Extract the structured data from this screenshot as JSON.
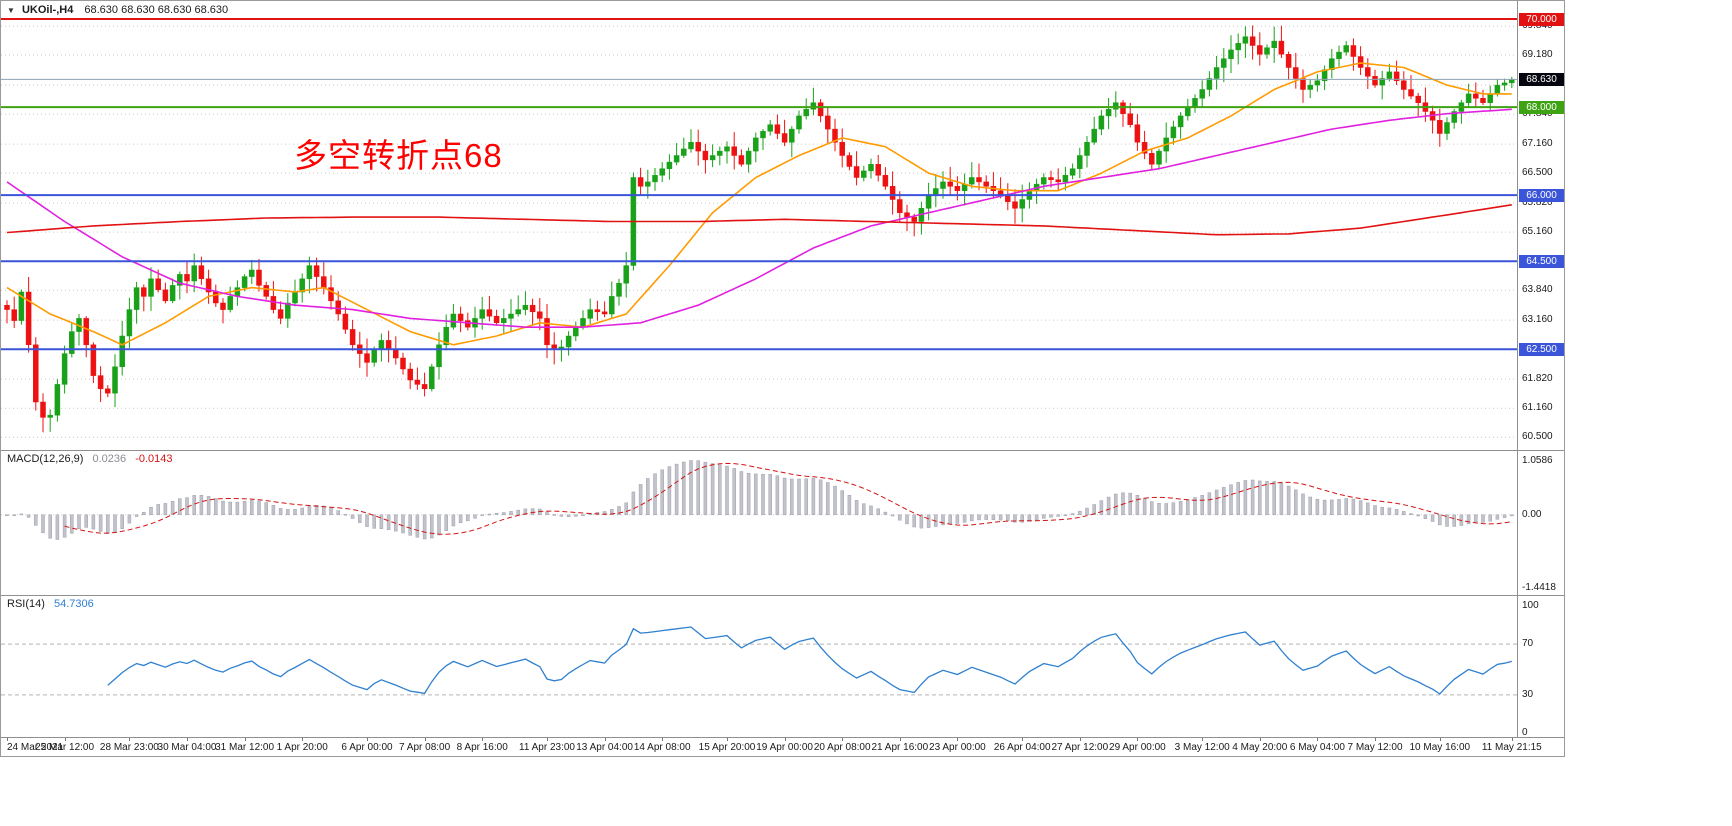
{
  "header": {
    "collapse_icon": "▼",
    "symbol": "UKOil-,H4",
    "ohlc": "68.630 68.630 68.630 68.630"
  },
  "annotation": {
    "text": "多空转折点68",
    "color": "#ff0000"
  },
  "colors": {
    "up": "#19a119",
    "down": "#ee1111",
    "grid": "#c9c9c9",
    "background": "#ffffff",
    "line_red": "#e31212",
    "line_green": "#3ea313",
    "line_blue": "#3a55d9",
    "current_price_bg": "#05050f"
  },
  "time_axis": {
    "labels": [
      "24 Mar 2021",
      "25 Mar 12:00",
      "28 Mar 23:00",
      "30 Mar 04:00",
      "31 Mar 12:00",
      "1 Apr 20:00",
      "6 Apr 00:00",
      "7 Apr 08:00",
      "8 Apr 16:00",
      "11 Apr 23:00",
      "13 Apr 04:00",
      "14 Apr 08:00",
      "15 Apr 20:00",
      "19 Apr 00:00",
      "20 Apr 08:00",
      "21 Apr 16:00",
      "23 Apr 00:00",
      "26 Apr 04:00",
      "27 Apr 12:00",
      "29 Apr 00:00",
      "3 May 12:00",
      "4 May 20:00",
      "6 May 04:00",
      "7 May 12:00",
      "10 May 16:00",
      "11 May 21:15"
    ],
    "bars": [
      0,
      8,
      17,
      25,
      33,
      41,
      50,
      58,
      66,
      75,
      83,
      91,
      100,
      108,
      116,
      124,
      132,
      141,
      149,
      157,
      166,
      174,
      182,
      190,
      199,
      209
    ]
  },
  "chart_data": [
    {
      "type": "candlestick",
      "symbol": "UKOil-",
      "timeframe": "H4",
      "ylim": [
        60.21,
        70.41
      ],
      "y_ticks": [
        "69.840",
        "69.180",
        "68.500",
        "67.840",
        "67.160",
        "66.500",
        "65.820",
        "65.160",
        "64.500",
        "63.840",
        "63.160",
        "62.500",
        "61.820",
        "61.160",
        "60.500"
      ],
      "first_open": 63.5,
      "closes": [
        63.4,
        63.15,
        63.8,
        62.6,
        61.3,
        60.95,
        61.0,
        61.7,
        62.4,
        62.9,
        63.2,
        62.6,
        61.9,
        61.6,
        61.5,
        62.1,
        62.8,
        63.4,
        63.9,
        63.7,
        64.1,
        63.85,
        63.6,
        63.95,
        64.2,
        64.05,
        64.4,
        64.1,
        63.8,
        63.55,
        63.4,
        63.7,
        63.9,
        64.15,
        64.3,
        63.95,
        63.7,
        63.4,
        63.2,
        63.55,
        63.8,
        64.1,
        64.4,
        64.15,
        63.9,
        63.6,
        63.3,
        62.95,
        62.6,
        62.4,
        62.2,
        62.5,
        62.7,
        62.5,
        62.3,
        62.05,
        61.8,
        61.7,
        61.6,
        62.1,
        62.6,
        63.0,
        63.3,
        63.15,
        63.0,
        63.2,
        63.4,
        63.25,
        63.1,
        63.2,
        63.3,
        63.4,
        63.5,
        63.35,
        63.2,
        62.6,
        62.5,
        62.55,
        62.8,
        63.0,
        63.2,
        63.4,
        63.35,
        63.3,
        63.7,
        64.0,
        64.4,
        66.4,
        66.2,
        66.3,
        66.45,
        66.6,
        66.75,
        66.9,
        67.05,
        67.2,
        67.0,
        66.8,
        66.9,
        67.0,
        67.1,
        66.9,
        66.7,
        67.0,
        67.3,
        67.45,
        67.6,
        67.4,
        67.2,
        67.5,
        67.8,
        67.95,
        68.1,
        67.8,
        67.5,
        67.2,
        66.9,
        66.65,
        66.4,
        66.55,
        66.7,
        66.45,
        66.2,
        65.9,
        65.6,
        65.5,
        65.4,
        65.7,
        66.0,
        66.15,
        66.3,
        66.2,
        66.1,
        66.25,
        66.4,
        66.3,
        66.2,
        66.1,
        66.0,
        65.85,
        65.7,
        65.9,
        66.1,
        66.25,
        66.4,
        66.35,
        66.3,
        66.45,
        66.6,
        66.9,
        67.2,
        67.5,
        67.8,
        67.95,
        68.1,
        67.85,
        67.6,
        67.2,
        66.95,
        66.7,
        67.0,
        67.3,
        67.55,
        67.8,
        68.0,
        68.2,
        68.4,
        68.65,
        68.9,
        69.1,
        69.3,
        69.45,
        69.6,
        69.4,
        69.2,
        69.35,
        69.5,
        69.2,
        68.9,
        68.65,
        68.4,
        68.5,
        68.6,
        68.85,
        69.1,
        69.25,
        69.4,
        69.15,
        68.9,
        68.7,
        68.5,
        68.65,
        68.8,
        68.6,
        68.4,
        68.25,
        68.1,
        67.9,
        67.7,
        67.4,
        67.65,
        67.9,
        68.1,
        68.3,
        68.2,
        68.1,
        68.3,
        68.5,
        68.55,
        68.63
      ],
      "hlines": [
        {
          "price": 70.0,
          "label": "70.000",
          "color": "#e31212",
          "name": "hline-70000"
        },
        {
          "price": 68.0,
          "label": "68.000",
          "color": "#3ea313",
          "name": "hline-68000"
        },
        {
          "price": 66.0,
          "label": "66.000",
          "color": "#3a55d9",
          "name": "hline-66000"
        },
        {
          "price": 64.5,
          "label": "64.500",
          "color": "#3a55d9",
          "name": "hline-64500"
        },
        {
          "price": 62.5,
          "label": "62.500",
          "color": "#3a55d9",
          "name": "hline-62500"
        }
      ],
      "current_price": {
        "price": 68.63,
        "label": "68.630",
        "bg": "#05050f",
        "line_color": "#8ba2b5"
      },
      "moving_averages": [
        {
          "name": "ma-fast-orange",
          "color": "#ff9b00",
          "anchors": [
            [
              0,
              63.9
            ],
            [
              6,
              63.3
            ],
            [
              12,
              62.9
            ],
            [
              16,
              62.6
            ],
            [
              22,
              63.1
            ],
            [
              28,
              63.7
            ],
            [
              34,
              63.9
            ],
            [
              40,
              63.8
            ],
            [
              44,
              63.9
            ],
            [
              50,
              63.4
            ],
            [
              56,
              62.9
            ],
            [
              62,
              62.6
            ],
            [
              68,
              62.8
            ],
            [
              74,
              63.1
            ],
            [
              80,
              63.0
            ],
            [
              86,
              63.3
            ],
            [
              92,
              64.4
            ],
            [
              98,
              65.6
            ],
            [
              104,
              66.4
            ],
            [
              110,
              66.9
            ],
            [
              116,
              67.3
            ],
            [
              122,
              67.1
            ],
            [
              128,
              66.5
            ],
            [
              134,
              66.2
            ],
            [
              140,
              66.1
            ],
            [
              146,
              66.1
            ],
            [
              152,
              66.5
            ],
            [
              158,
              67.0
            ],
            [
              164,
              67.3
            ],
            [
              170,
              67.8
            ],
            [
              176,
              68.4
            ],
            [
              182,
              68.8
            ],
            [
              188,
              69.0
            ],
            [
              194,
              68.9
            ],
            [
              200,
              68.5
            ],
            [
              205,
              68.3
            ],
            [
              209,
              68.3
            ]
          ]
        },
        {
          "name": "ma-mid-magenta",
          "color": "#e021e0",
          "anchors": [
            [
              0,
              66.3
            ],
            [
              8,
              65.4
            ],
            [
              16,
              64.6
            ],
            [
              24,
              64.0
            ],
            [
              32,
              63.7
            ],
            [
              40,
              63.5
            ],
            [
              48,
              63.4
            ],
            [
              56,
              63.2
            ],
            [
              64,
              63.1
            ],
            [
              72,
              63.0
            ],
            [
              80,
              63.0
            ],
            [
              88,
              63.1
            ],
            [
              96,
              63.5
            ],
            [
              104,
              64.1
            ],
            [
              112,
              64.8
            ],
            [
              120,
              65.3
            ],
            [
              128,
              65.6
            ],
            [
              136,
              65.9
            ],
            [
              144,
              66.2
            ],
            [
              152,
              66.4
            ],
            [
              160,
              66.6
            ],
            [
              168,
              66.9
            ],
            [
              176,
              67.2
            ],
            [
              184,
              67.5
            ],
            [
              192,
              67.7
            ],
            [
              200,
              67.85
            ],
            [
              209,
              67.95
            ]
          ]
        },
        {
          "name": "ma-slow-red",
          "color": "#e31212",
          "anchors": [
            [
              0,
              65.15
            ],
            [
              12,
              65.3
            ],
            [
              24,
              65.4
            ],
            [
              36,
              65.48
            ],
            [
              48,
              65.5
            ],
            [
              60,
              65.5
            ],
            [
              72,
              65.45
            ],
            [
              84,
              65.4
            ],
            [
              96,
              65.4
            ],
            [
              108,
              65.45
            ],
            [
              120,
              65.4
            ],
            [
              132,
              65.35
            ],
            [
              144,
              65.3
            ],
            [
              156,
              65.2
            ],
            [
              168,
              65.1
            ],
            [
              178,
              65.12
            ],
            [
              188,
              65.25
            ],
            [
              198,
              65.5
            ],
            [
              209,
              65.78
            ]
          ]
        }
      ]
    },
    {
      "type": "macd-histogram",
      "label": "MACD(12,26,9)",
      "value_main": "0.0236",
      "value_signal": "-0.0143",
      "params": [
        12,
        26,
        9
      ],
      "ylim": [
        -1.578,
        1.254
      ],
      "y_ticks": [
        {
          "v": 1.0586,
          "label": "1.0586"
        },
        {
          "v": 0,
          "label": "0.00"
        },
        {
          "v": -1.4418,
          "label": "-1.4418"
        }
      ],
      "hist_color": "#c2c2cc",
      "hist_stroke": "#a0a0ac",
      "signal_color": "#d41414"
    },
    {
      "type": "line",
      "label": "RSI(14)",
      "value": "54.7306",
      "period": 14,
      "ylim": [
        -3.1,
        107.8
      ],
      "y_ticks": [
        {
          "v": 100,
          "label": "100"
        },
        {
          "v": 70,
          "label": "70"
        },
        {
          "v": 30,
          "label": "30"
        },
        {
          "v": 0,
          "label": "0"
        }
      ],
      "color": "#2f80d0"
    }
  ]
}
